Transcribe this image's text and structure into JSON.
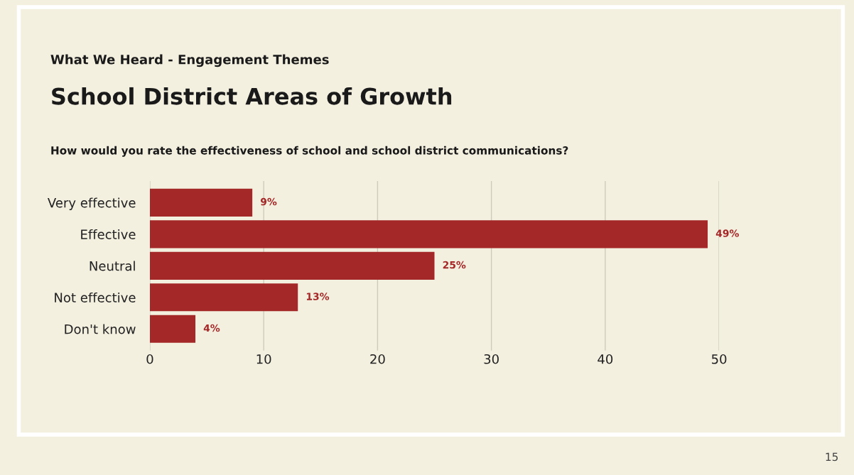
{
  "chart_data": {
    "type": "bar",
    "orientation": "horizontal",
    "subtitle": "What We Heard - Engagement Themes",
    "title": "School District Areas of Growth",
    "annotations": [
      "How would you rate the effectiveness of school and school district communications?",
      "15"
    ],
    "categories": [
      "Very effective",
      "Effective",
      "Neutral",
      "Not effective",
      "Don't know"
    ],
    "values": [
      9,
      49,
      25,
      13,
      4
    ],
    "value_labels": [
      "9%",
      "49%",
      "25%",
      "13%",
      "4%"
    ],
    "color": "#a52828",
    "xlim": [
      0,
      50
    ],
    "xticks": [
      0,
      10,
      20,
      30,
      40,
      50
    ],
    "grid": "x",
    "legend": false
  }
}
